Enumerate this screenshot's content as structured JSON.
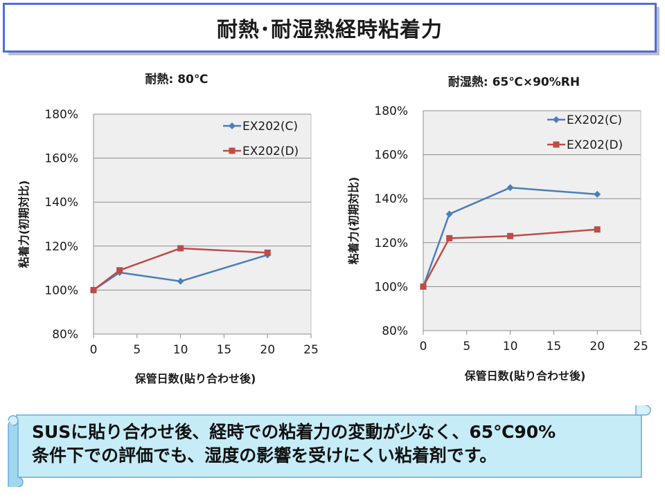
{
  "slide": {
    "title": "耐熱･耐湿熱経時粘着力",
    "conclusion_line1": "SUSに貼り合わせ後、経時での粘着力の変動が少なく、65℃90%",
    "conclusion_line2": "条件下での評価でも、湿度の影響を受けにくい粘着剤です。"
  },
  "chart_data": [
    {
      "type": "line",
      "title": "耐熱: 80℃",
      "xlabel": "保管日数(貼り合わせ後)",
      "ylabel": "粘着力(初期対比)",
      "xlim": [
        0,
        25
      ],
      "xticks": [
        0,
        5,
        10,
        15,
        20,
        25
      ],
      "ylim": [
        80,
        180
      ],
      "yticks": [
        80,
        100,
        120,
        140,
        160,
        180
      ],
      "ytick_labels": [
        "80%",
        "100%",
        "120%",
        "140%",
        "160%",
        "180%"
      ],
      "grid": true,
      "legend_position": "top-right",
      "series": [
        {
          "name": "EX202(C)",
          "color": "#4a7ebb",
          "marker": "diamond",
          "x": [
            0,
            3,
            10,
            20
          ],
          "y": [
            100,
            108,
            104,
            116
          ]
        },
        {
          "name": "EX202(D)",
          "color": "#be4b48",
          "marker": "square",
          "x": [
            0,
            3,
            10,
            20
          ],
          "y": [
            100,
            109,
            119,
            117
          ]
        }
      ]
    },
    {
      "type": "line",
      "title": "耐湿熱: 65℃×90%RH",
      "xlabel": "保管日数(貼り合わせ後)",
      "ylabel": "粘着力(初期対比)",
      "xlim": [
        0,
        25
      ],
      "xticks": [
        0,
        5,
        10,
        15,
        20,
        25
      ],
      "ylim": [
        80,
        180
      ],
      "yticks": [
        80,
        100,
        120,
        140,
        160,
        180
      ],
      "ytick_labels": [
        "80%",
        "100%",
        "120%",
        "140%",
        "160%",
        "180%"
      ],
      "grid": true,
      "legend_position": "top-right",
      "series": [
        {
          "name": "EX202(C)",
          "color": "#4a7ebb",
          "marker": "diamond",
          "x": [
            0,
            3,
            10,
            20
          ],
          "y": [
            100,
            133,
            145,
            142
          ]
        },
        {
          "name": "EX202(D)",
          "color": "#be4b48",
          "marker": "square",
          "x": [
            0,
            3,
            10,
            20
          ],
          "y": [
            100,
            122,
            123,
            126
          ]
        }
      ]
    }
  ]
}
